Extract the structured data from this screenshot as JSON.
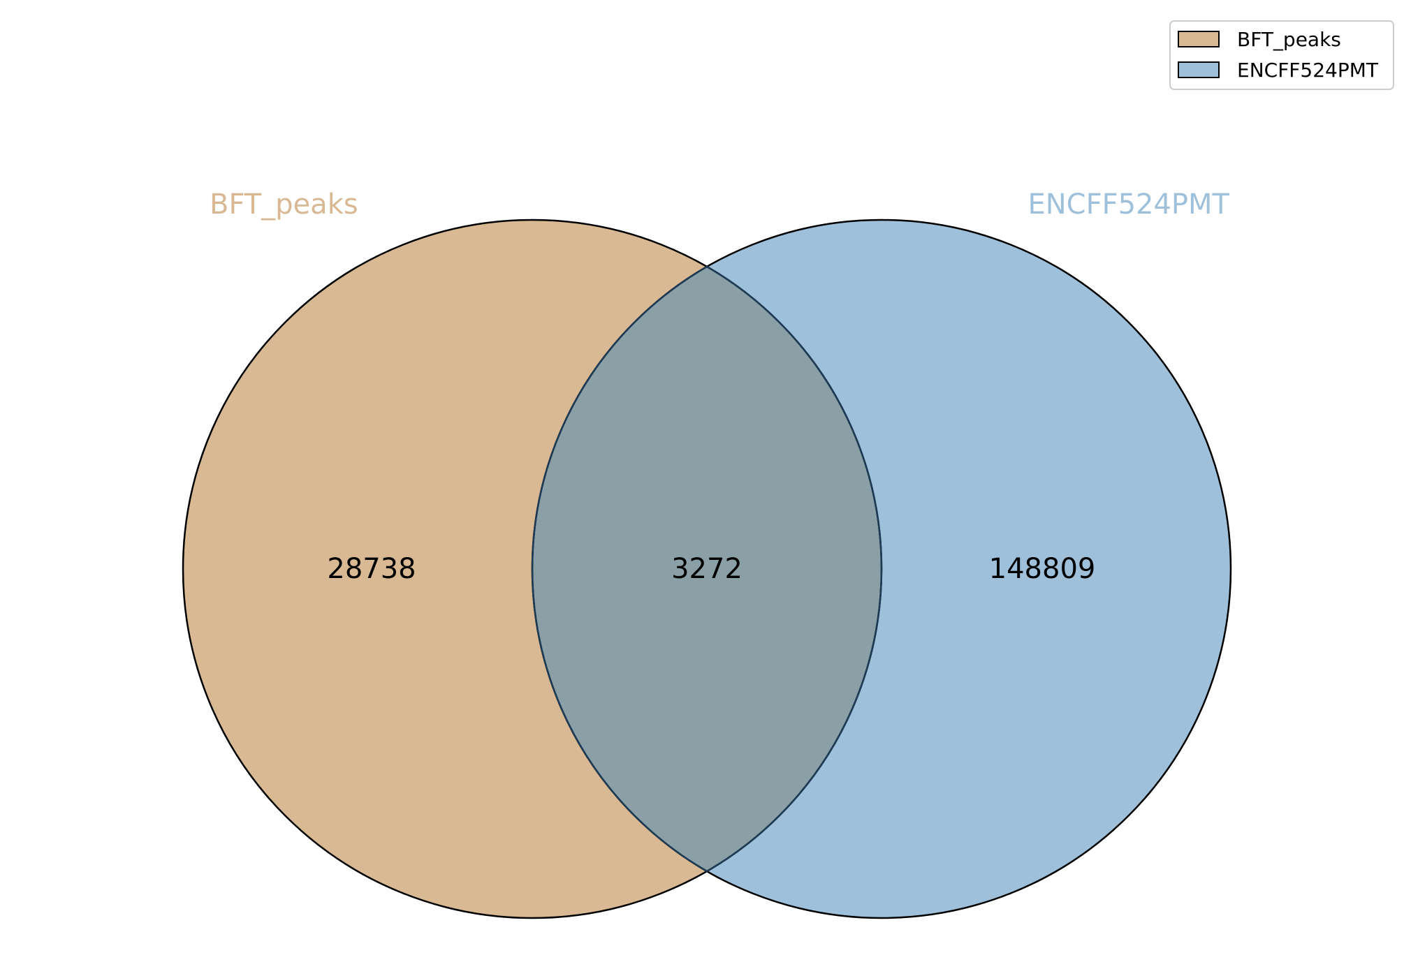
{
  "sets": [
    {
      "name": "BFT_peaks",
      "color": "#d8b994"
    },
    {
      "name": "ENCFF524PMT",
      "color": "#9ec0da"
    }
  ],
  "intersection_color": "#8a9fa6",
  "regions": {
    "left_only": "28738",
    "intersection": "3272",
    "right_only": "148809"
  },
  "legend": {
    "placement": "top-right",
    "items": [
      {
        "label": "BFT_peaks",
        "color": "#d8b994"
      },
      {
        "label": "ENCFF524PMT",
        "color": "#9ec0da"
      }
    ]
  }
}
